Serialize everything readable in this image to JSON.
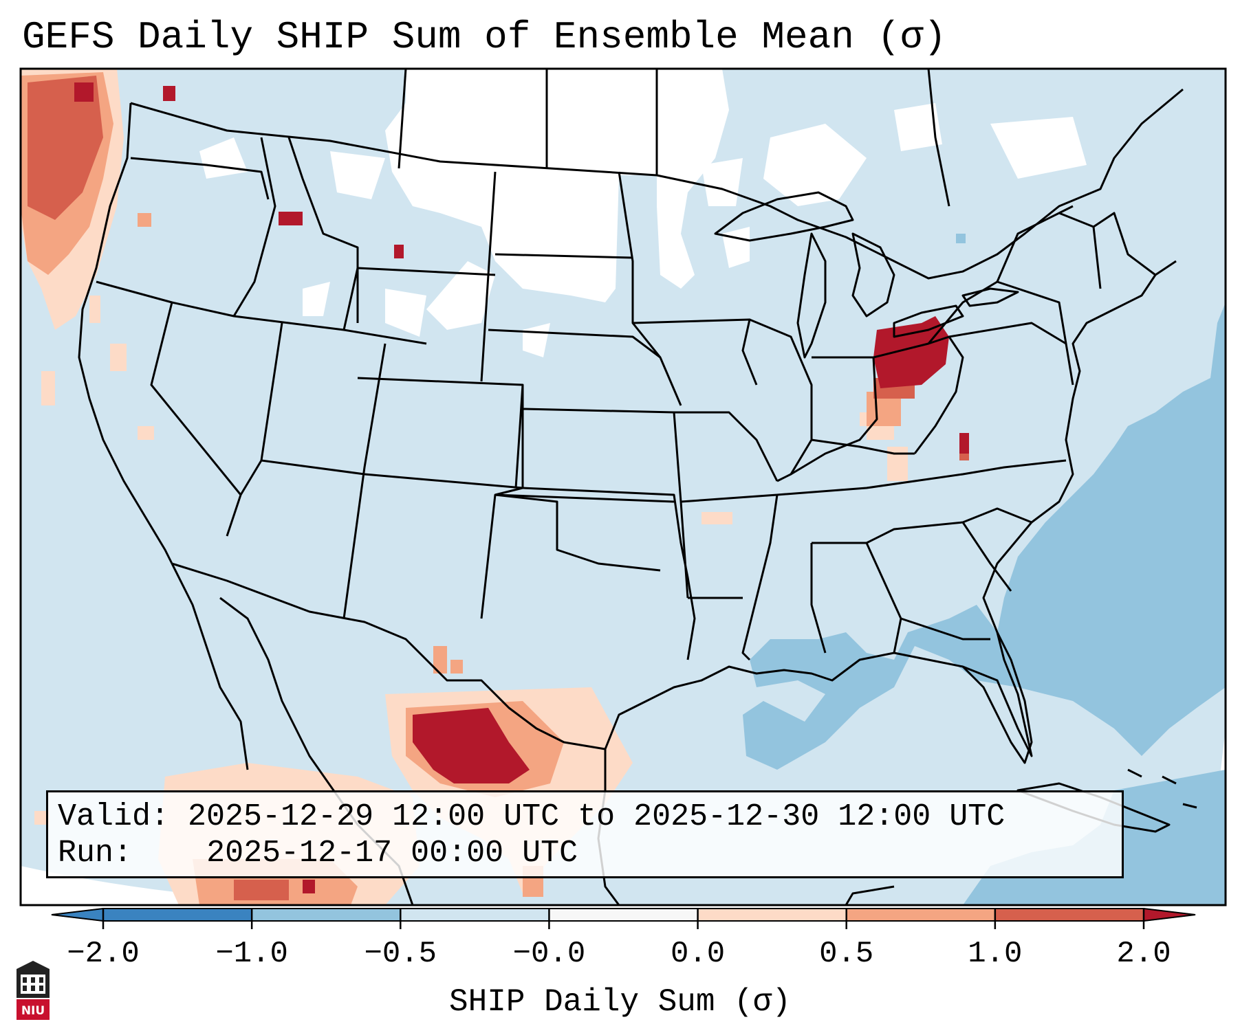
{
  "title": "GEFS Daily SHIP Sum of Ensemble Mean (σ)",
  "info": {
    "valid_label": "Valid:",
    "valid_value": "2025-12-29 12:00 UTC to 2025-12-30 12:00 UTC",
    "run_label": "Run:",
    "run_value": "2025-12-17 00:00 UTC"
  },
  "colorbar": {
    "label": "SHIP Daily Sum (σ)",
    "ticks": [
      "−2.0",
      "−1.0",
      "−0.5",
      "−0.0",
      "0.0",
      "0.5",
      "1.0",
      "2.0"
    ],
    "colors": [
      "#3a83c0",
      "#93c4de",
      "#d1e5f0",
      "#f7f7f7",
      "#fddbc7",
      "#f4a582",
      "#d6604d",
      "#b2182b"
    ],
    "extend": "both"
  },
  "map": {
    "background_color": "#d1e5f0",
    "region": "Contiguous United States, southern Canada, northern Mexico"
  },
  "logo": {
    "name": "niu-logo",
    "text": "NIU"
  }
}
